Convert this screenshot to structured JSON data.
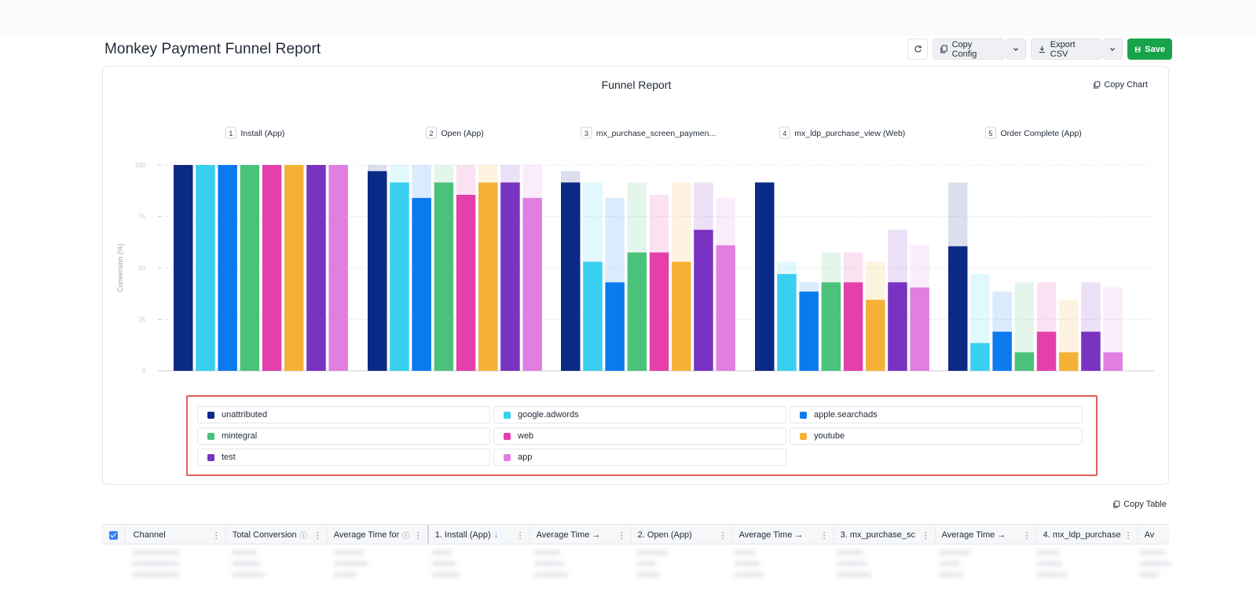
{
  "page": {
    "title": "Monkey Payment Funnel Report"
  },
  "toolbar": {
    "refresh_icon": "refresh-icon",
    "copy_config_label": "Copy Config",
    "export_csv_label": "Export CSV",
    "save_label": "Save"
  },
  "chart_panel": {
    "copy_chart_label": "Copy Chart"
  },
  "chart_data": {
    "type": "bar",
    "title": "Funnel Report",
    "ylabel": "Conversion (%)",
    "xlabel": "",
    "ylim": [
      0,
      100
    ],
    "ytick_labels": [
      "100",
      "75",
      "50",
      "25",
      "0"
    ],
    "ytick_values": [
      100,
      75,
      50,
      25,
      0
    ],
    "grid": true,
    "steps": [
      {
        "number": "1",
        "label": "Install (App)"
      },
      {
        "number": "2",
        "label": "Open (App)"
      },
      {
        "number": "3",
        "label": "mx_purchase_screen_paymen..."
      },
      {
        "number": "4",
        "label": "mx_ldp_purchase_view (Web)"
      },
      {
        "number": "5",
        "label": "Order Complete (App)"
      }
    ],
    "series": [
      {
        "name": "unattributed",
        "color": "#0b2a86",
        "values": [
          100,
          97,
          91.5,
          91.5,
          60.5
        ]
      },
      {
        "name": "google.adwords",
        "color": "#38cff0",
        "values": [
          100,
          91.5,
          53,
          47,
          13.5
        ]
      },
      {
        "name": "apple.searchads",
        "color": "#0a7bef",
        "values": [
          100,
          84,
          43,
          38.5,
          19
        ]
      },
      {
        "name": "mintegral",
        "color": "#4bc27a",
        "values": [
          100,
          91.5,
          57.5,
          43,
          9
        ]
      },
      {
        "name": "web",
        "color": "#e53fab",
        "values": [
          100,
          85.5,
          57.5,
          43,
          19
        ]
      },
      {
        "name": "youtube",
        "color": "#f5b136",
        "values": [
          100,
          91.5,
          53,
          34.5,
          9
        ]
      },
      {
        "name": "test",
        "color": "#7a32c2",
        "values": [
          100,
          91.5,
          68.5,
          43,
          19
        ]
      },
      {
        "name": "app",
        "color": "#e07fe0",
        "values": [
          100,
          84,
          61,
          40.5,
          9
        ]
      }
    ]
  },
  "legend": {
    "items": [
      "unattributed",
      "google.adwords",
      "apple.searchads",
      "mintegral",
      "web",
      "youtube",
      "test",
      "app"
    ],
    "colors": [
      "#0b2a86",
      "#38cff0",
      "#0a7bef",
      "#4bc27a",
      "#e53fab",
      "#f5b136",
      "#7a32c2",
      "#e07fe0"
    ]
  },
  "table": {
    "copy_table_label": "Copy Table",
    "columns": [
      "Channel",
      "Total Conversion",
      "Average Time for",
      "1. Install (App)",
      "Average Time →",
      "2. Open (App)",
      "Average Time →",
      "3. mx_purchase_sc",
      "Average Time →",
      "4. mx_ldp_purchase",
      "Av"
    ]
  }
}
